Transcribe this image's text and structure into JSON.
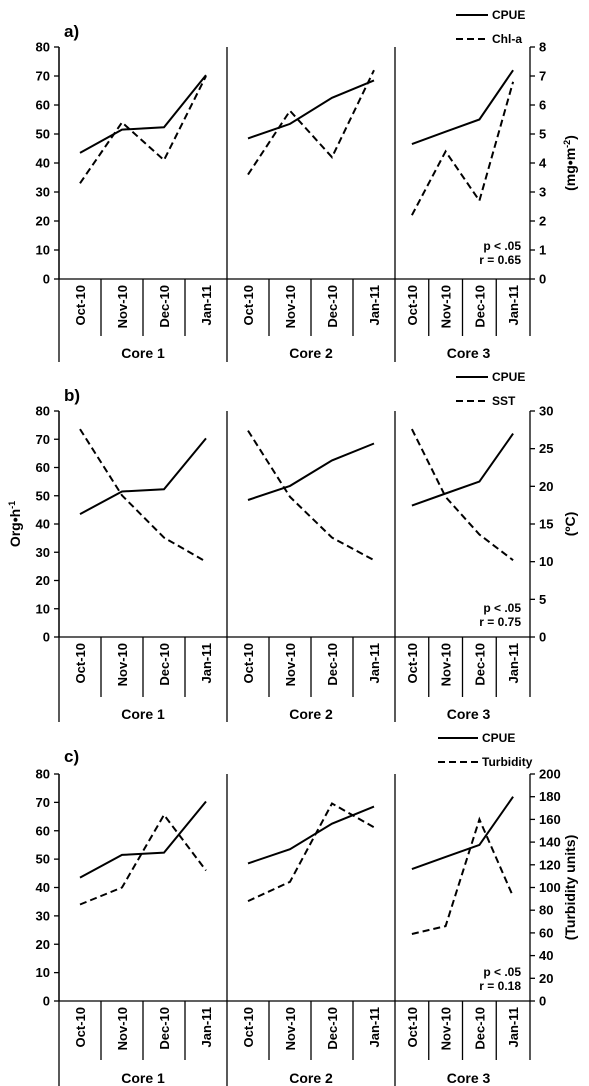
{
  "chart_data": [
    {
      "type": "line",
      "panel_label": "a)",
      "groups": [
        "Core 1",
        "Core 2",
        "Core 3"
      ],
      "categories": [
        "Oct-10",
        "Nov-10",
        "Dec-10",
        "Jan-11"
      ],
      "ylabel_left": "",
      "ylabel_right": "(mg•m",
      "ylabel_right_sup": "-2",
      "ylabel_right_close": ")",
      "ylim_left": [
        0,
        80
      ],
      "yticks_left": [
        0,
        10,
        20,
        30,
        40,
        50,
        60,
        70,
        80
      ],
      "ylim_right": [
        0,
        8
      ],
      "yticks_right": [
        0,
        1,
        2,
        3,
        4,
        5,
        6,
        7,
        8
      ],
      "series": [
        {
          "name": "CPUE",
          "axis": "left",
          "style": "solid",
          "values": [
            [
              43.5,
              51.5,
              52.3,
              70.3
            ],
            [
              48.5,
              53.5,
              62.5,
              68.5
            ],
            [
              46.5,
              50.8,
              55.0,
              72.0
            ]
          ]
        },
        {
          "name": "Chl-a",
          "axis": "right",
          "style": "dashed",
          "values": [
            [
              3.3,
              5.4,
              4.1,
              7.0
            ],
            [
              3.6,
              5.8,
              4.2,
              7.2
            ],
            [
              2.2,
              4.4,
              2.7,
              6.8
            ]
          ]
        }
      ],
      "stats": [
        "p < .05",
        "r = 0.65"
      ]
    },
    {
      "type": "line",
      "panel_label": "b)",
      "groups": [
        "Core 1",
        "Core 2",
        "Core 3"
      ],
      "categories": [
        "Oct-10",
        "Nov-10",
        "Dec-10",
        "Jan-11"
      ],
      "ylabel_left": "Org•h",
      "ylabel_left_sup": "-1",
      "ylabel_right": "(ºC)",
      "ylim_left": [
        0,
        80
      ],
      "yticks_left": [
        0,
        10,
        20,
        30,
        40,
        50,
        60,
        70,
        80
      ],
      "ylim_right": [
        0,
        30
      ],
      "yticks_right": [
        0,
        5,
        10,
        15,
        20,
        25,
        30
      ],
      "series": [
        {
          "name": "CPUE",
          "axis": "left",
          "style": "solid",
          "values": [
            [
              43.5,
              51.5,
              52.3,
              70.3
            ],
            [
              48.5,
              53.5,
              62.5,
              68.5
            ],
            [
              46.5,
              50.8,
              55.0,
              72.0
            ]
          ]
        },
        {
          "name": "SST",
          "axis": "right",
          "style": "dashed",
          "values": [
            [
              27.6,
              18.8,
              13.2,
              10.0
            ],
            [
              27.4,
              18.6,
              13.2,
              10.2
            ],
            [
              27.6,
              18.6,
              13.6,
              10.2
            ]
          ]
        }
      ],
      "stats": [
        "p < .05",
        "r = 0.75"
      ]
    },
    {
      "type": "line",
      "panel_label": "c)",
      "groups": [
        "Core 1",
        "Core 2",
        "Core 3"
      ],
      "categories": [
        "Oct-10",
        "Nov-10",
        "Dec-10",
        "Jan-11"
      ],
      "ylabel_left": "",
      "ylabel_right": "(Turbidity units)",
      "ylim_left": [
        0,
        80
      ],
      "yticks_left": [
        0,
        10,
        20,
        30,
        40,
        50,
        60,
        70,
        80
      ],
      "ylim_right": [
        0,
        200
      ],
      "yticks_right": [
        0,
        20,
        40,
        60,
        80,
        100,
        120,
        140,
        160,
        180,
        200
      ],
      "series": [
        {
          "name": "CPUE",
          "axis": "left",
          "style": "solid",
          "values": [
            [
              43.5,
              51.5,
              52.3,
              70.3
            ],
            [
              48.5,
              53.5,
              62.5,
              68.5
            ],
            [
              46.5,
              50.8,
              55.0,
              72.0
            ]
          ]
        },
        {
          "name": "Turbidity",
          "axis": "right",
          "style": "dashed",
          "values": [
            [
              85,
              100,
              164,
              115
            ],
            [
              88,
              105,
              174,
              153
            ],
            [
              59,
              66,
              160,
              92
            ]
          ]
        }
      ],
      "stats": [
        "p < .05",
        "r = 0.18"
      ]
    }
  ]
}
